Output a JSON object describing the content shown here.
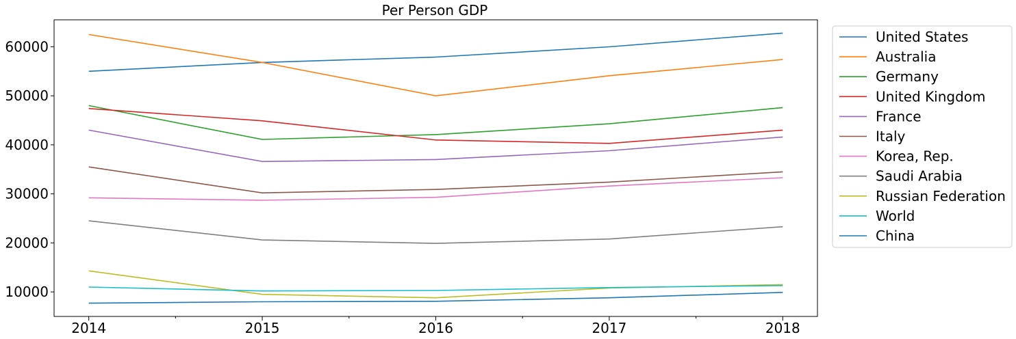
{
  "chart_data": {
    "type": "line",
    "title": "Per Person GDP",
    "xlabel": "",
    "ylabel": "",
    "x": [
      "2014",
      "2015",
      "2016",
      "2017",
      "2018"
    ],
    "xlim": [
      2013.8,
      2018.2
    ],
    "ylim": [
      5000,
      65500
    ],
    "y_ticks": [
      10000,
      20000,
      30000,
      40000,
      50000,
      60000
    ],
    "y_tick_labels": [
      "10000",
      "20000",
      "30000",
      "40000",
      "50000",
      "60000"
    ],
    "x_tick_labels": [
      "2014",
      "2015",
      "2016",
      "2017",
      "2018"
    ],
    "grid": false,
    "legend_position": "outside-right",
    "series": [
      {
        "name": "United States",
        "color": "#1f77b4",
        "values": [
          55000,
          56800,
          57900,
          60000,
          62800
        ]
      },
      {
        "name": "Australia",
        "color": "#ff7f0e",
        "values": [
          62500,
          56800,
          50000,
          54100,
          57400
        ]
      },
      {
        "name": "Germany",
        "color": "#2ca02c",
        "values": [
          48000,
          41100,
          42100,
          44300,
          47600
        ]
      },
      {
        "name": "United Kingdom",
        "color": "#d62728",
        "values": [
          47400,
          44900,
          41000,
          40300,
          43000
        ]
      },
      {
        "name": "France",
        "color": "#9467bd",
        "values": [
          43000,
          36600,
          37000,
          38800,
          41600
        ]
      },
      {
        "name": "Italy",
        "color": "#8c564b",
        "values": [
          35500,
          30200,
          30900,
          32400,
          34500
        ]
      },
      {
        "name": "Korea, Rep.",
        "color": "#e377c2",
        "values": [
          29200,
          28700,
          29300,
          31600,
          33300
        ]
      },
      {
        "name": "Saudi Arabia",
        "color": "#7f7f7f",
        "values": [
          24500,
          20600,
          19900,
          20800,
          23300
        ]
      },
      {
        "name": "Russian Federation",
        "color": "#bcbd22",
        "values": [
          14300,
          9500,
          8800,
          10800,
          11500
        ]
      },
      {
        "name": "World",
        "color": "#17becf",
        "values": [
          11000,
          10200,
          10300,
          10900,
          11300
        ]
      },
      {
        "name": "China",
        "color": "#1f77b4",
        "values": [
          7700,
          8000,
          8100,
          8800,
          9900
        ]
      }
    ]
  }
}
